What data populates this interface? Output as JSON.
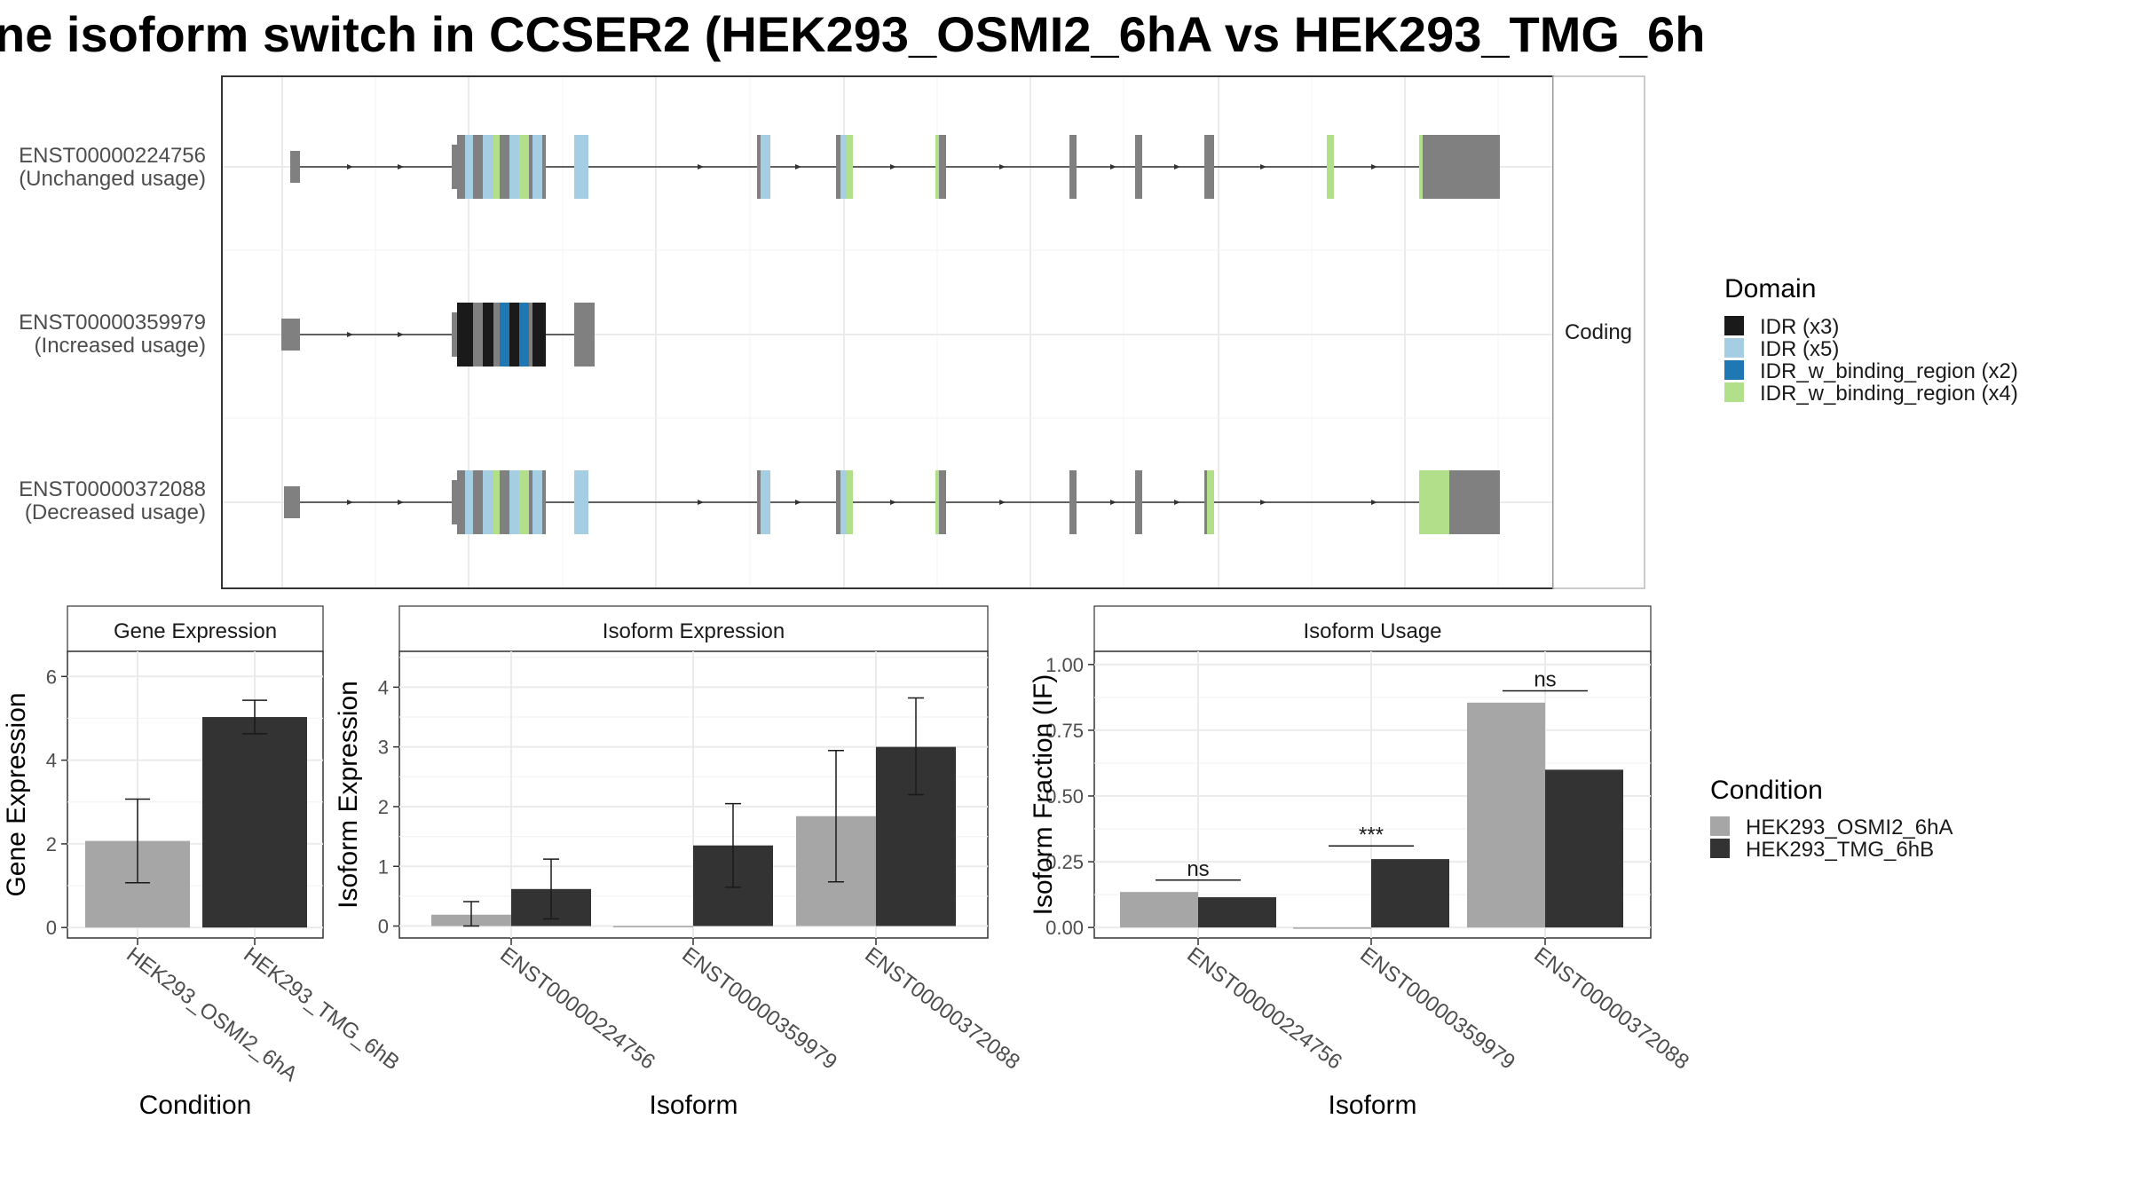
{
  "title": "ne isoform switch in CCSER2 (HEK293_OSMI2_6hA vs HEK293_TMG_6h",
  "structure": {
    "facet_label": "Coding",
    "isoforms": [
      {
        "id": "ENST00000224756",
        "usage": "(Unchanged usage)"
      },
      {
        "id": "ENST00000359979",
        "usage": "(Increased usage)"
      },
      {
        "id": "ENST00000372088",
        "usage": "(Decreased usage)"
      }
    ]
  },
  "legends": {
    "domain": {
      "title": "Domain",
      "items": [
        {
          "label": "IDR (x3)",
          "color": "#1a1a1a"
        },
        {
          "label": "IDR (x5)",
          "color": "#a6cee3"
        },
        {
          "label": "IDR_w_binding_region (x2)",
          "color": "#1f78b4"
        },
        {
          "label": "IDR_w_binding_region (x4)",
          "color": "#b2df8a"
        }
      ]
    },
    "condition": {
      "title": "Condition",
      "items": [
        {
          "label": "HEK293_OSMI2_6hA",
          "color": "#a6a6a6"
        },
        {
          "label": "HEK293_TMG_6hB",
          "color": "#333333"
        }
      ]
    }
  },
  "chart_data": [
    {
      "type": "bar",
      "title": "Gene Expression",
      "xlabel": "Condition",
      "ylabel": "Gene Expression",
      "categories": [
        "HEK293_OSMI2_6hA",
        "HEK293_TMG_6hB"
      ],
      "values": [
        2.07,
        5.03
      ],
      "error_low": [
        1.07,
        4.63
      ],
      "error_high": [
        3.07,
        5.43
      ],
      "ylim": [
        -0.25,
        6.6
      ],
      "yticks": [
        "0",
        "2",
        "4",
        "6"
      ]
    },
    {
      "type": "bar",
      "title": "Isoform Expression",
      "xlabel": "Isoform",
      "ylabel": "Isoform Expression",
      "categories": [
        "ENST00000224756",
        "ENST00000359979",
        "ENST00000372088"
      ],
      "series": [
        {
          "name": "HEK293_OSMI2_6hA",
          "values": [
            0.19,
            0.0,
            1.84
          ],
          "error_low": [
            0.0,
            0.0,
            0.74
          ],
          "error_high": [
            0.41,
            0.0,
            2.94
          ]
        },
        {
          "name": "HEK293_TMG_6hB",
          "values": [
            0.62,
            1.35,
            3.0
          ],
          "error_low": [
            0.12,
            0.65,
            2.2
          ],
          "error_high": [
            1.12,
            2.05,
            3.82
          ]
        }
      ],
      "ylim": [
        -0.2,
        4.6
      ],
      "yticks": [
        "0",
        "1",
        "2",
        "3",
        "4"
      ]
    },
    {
      "type": "bar",
      "title": "Isoform Usage",
      "xlabel": "Isoform",
      "ylabel": "Isoform Fraction (IF)",
      "categories": [
        "ENST00000224756",
        "ENST00000359979",
        "ENST00000372088"
      ],
      "series": [
        {
          "name": "HEK293_OSMI2_6hA",
          "values": [
            0.135,
            0.0,
            0.855
          ]
        },
        {
          "name": "HEK293_TMG_6hB",
          "values": [
            0.115,
            0.26,
            0.6
          ]
        }
      ],
      "significance": [
        {
          "label": "ns",
          "y": 0.18
        },
        {
          "label": "***",
          "y": 0.31
        },
        {
          "label": "ns",
          "y": 0.9
        }
      ],
      "ylim": [
        -0.04,
        1.05
      ],
      "yticks": [
        "0.00",
        "0.25",
        "0.50",
        "0.75",
        "1.00"
      ]
    }
  ]
}
